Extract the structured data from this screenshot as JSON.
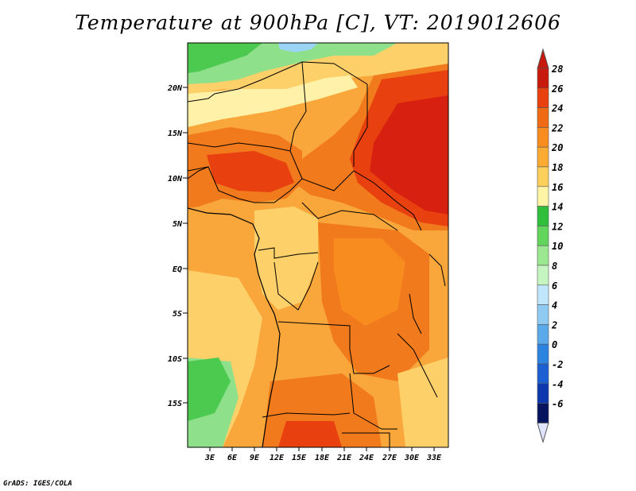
{
  "title": "Temperature at 900hPa [C], VT: 2019012606",
  "credit": "GrADS: IGES/COLA",
  "lat_labels": [
    "20N",
    "15N",
    "10N",
    "5N",
    "EQ",
    "5S",
    "10S",
    "15S"
  ],
  "lon_labels": [
    "3E",
    "6E",
    "9E",
    "12E",
    "15E",
    "18E",
    "21E",
    "24E",
    "27E",
    "30E",
    "33E"
  ],
  "colorbar": {
    "levels": [
      "28",
      "26",
      "24",
      "22",
      "20",
      "18",
      "16",
      "14",
      "12",
      "10",
      "8",
      "6",
      "4",
      "2",
      "0",
      "-2",
      "-4",
      "-6"
    ],
    "colors": [
      "#c81a0c",
      "#e8400f",
      "#f06a14",
      "#f88c1e",
      "#fbaa32",
      "#fdd05c",
      "#fff3a6",
      "#2fbf3a",
      "#62d55c",
      "#9ce890",
      "#c5f5c0",
      "#bfe6fa",
      "#8fcaf3",
      "#5aa9ea",
      "#2d84e0",
      "#1b5fd2",
      "#0c37ae",
      "#06135e"
    ],
    "top_arrow_color": "#c81a0c",
    "bottom_arrow_color": "#e0e4ff"
  },
  "colors": {
    "hot": "#d82010",
    "warm": "#f07a1c",
    "mild": "#f9a63a",
    "cool": "#fdd06a",
    "pale": "#fff2a8",
    "green": "#4cc94f",
    "lightgreen": "#8fe08a",
    "blue": "#9cd4f5"
  }
}
